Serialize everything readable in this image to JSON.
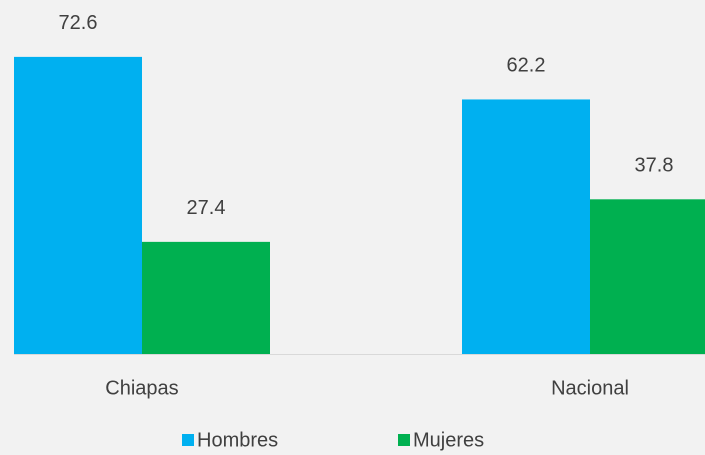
{
  "chart_data": {
    "type": "bar",
    "categories": [
      "Chiapas",
      "Nacional"
    ],
    "series": [
      {
        "name": "Hombres",
        "color": "#00b0f0",
        "values": [
          72.6,
          62.2
        ]
      },
      {
        "name": "Mujeres",
        "color": "#00b050",
        "values": [
          27.4,
          37.8
        ]
      }
    ],
    "ylim": [
      0,
      86.5
    ]
  }
}
